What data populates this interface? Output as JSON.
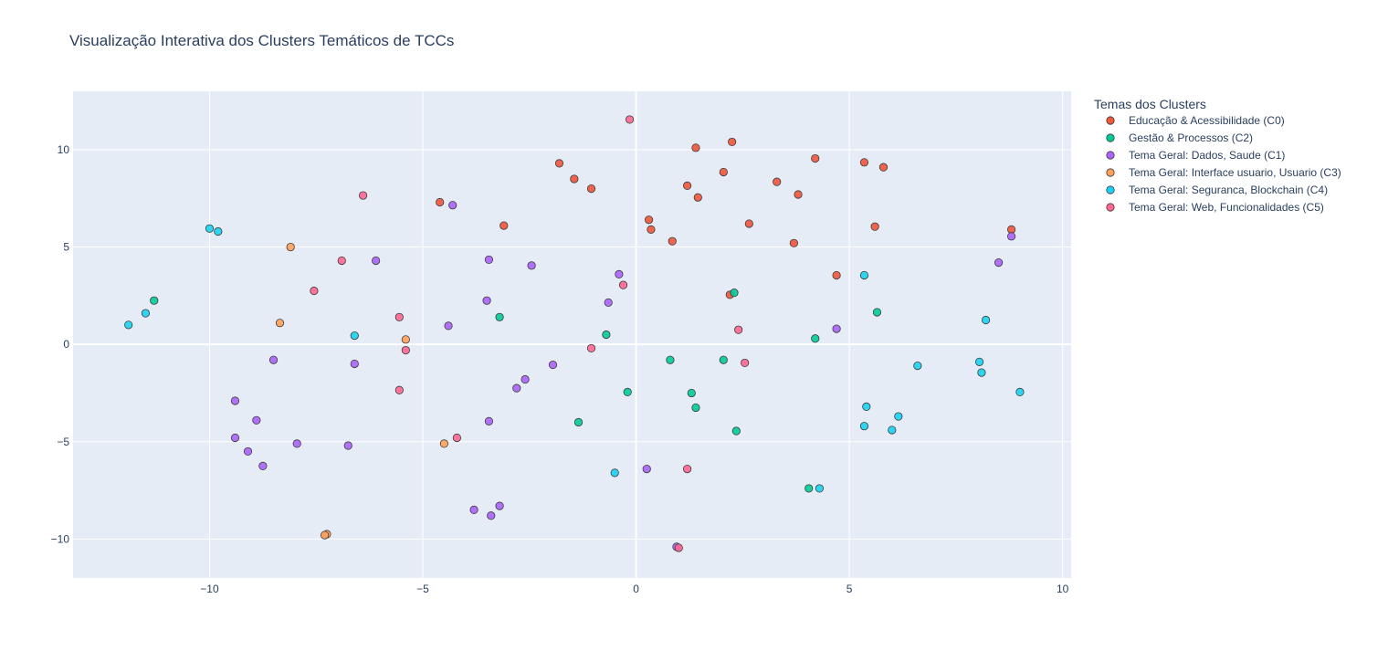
{
  "chart_data": {
    "type": "scatter",
    "title": "Visualização Interativa dos Clusters Temáticos de TCCs",
    "xlabel": "",
    "ylabel": "",
    "xlim": [
      -13.2,
      10.2
    ],
    "ylim": [
      -12.0,
      13.0
    ],
    "x_ticks": [
      -10,
      -5,
      0,
      5,
      10
    ],
    "y_ticks": [
      -10,
      -5,
      0,
      5,
      10
    ],
    "x_tick_labels": [
      "−10",
      "−5",
      "0",
      "5",
      "10"
    ],
    "y_tick_labels": [
      "−10",
      "−5",
      "0",
      "5",
      "10"
    ],
    "grid": true,
    "legend_position": "right",
    "legend_title": "Temas dos Clusters",
    "series": [
      {
        "name": "Educação & Acessibilidade (C0)",
        "color": "#EF553B",
        "points": [
          [
            -4.6,
            7.3
          ],
          [
            -3.1,
            6.1
          ],
          [
            -1.8,
            9.3
          ],
          [
            -1.45,
            8.5
          ],
          [
            -1.05,
            8.0
          ],
          [
            0.3,
            6.4
          ],
          [
            0.35,
            5.9
          ],
          [
            0.85,
            5.3
          ],
          [
            1.2,
            8.15
          ],
          [
            1.4,
            10.1
          ],
          [
            1.45,
            7.55
          ],
          [
            2.05,
            8.85
          ],
          [
            2.25,
            10.4
          ],
          [
            2.2,
            2.55
          ],
          [
            2.65,
            6.2
          ],
          [
            3.3,
            8.35
          ],
          [
            3.7,
            5.2
          ],
          [
            3.8,
            7.7
          ],
          [
            4.2,
            9.55
          ],
          [
            4.7,
            3.55
          ],
          [
            5.35,
            9.35
          ],
          [
            5.6,
            6.05
          ],
          [
            5.8,
            9.1
          ],
          [
            8.8,
            5.9
          ]
        ]
      },
      {
        "name": "Gestão & Processos (C2)",
        "color": "#00CC96",
        "points": [
          [
            -11.3,
            2.25
          ],
          [
            -3.2,
            1.4
          ],
          [
            -0.7,
            0.5
          ],
          [
            -0.2,
            -2.45
          ],
          [
            -1.35,
            -4.0
          ],
          [
            0.8,
            -0.8
          ],
          [
            1.3,
            -2.5
          ],
          [
            1.4,
            -3.25
          ],
          [
            2.05,
            -0.8
          ],
          [
            2.3,
            2.65
          ],
          [
            2.35,
            -4.45
          ],
          [
            4.05,
            -7.4
          ],
          [
            4.2,
            0.3
          ],
          [
            5.65,
            1.65
          ]
        ]
      },
      {
        "name": "Tema Geral: Dados, Saude (C1)",
        "color": "#AB63FA",
        "points": [
          [
            -9.4,
            -2.9
          ],
          [
            -9.4,
            -4.8
          ],
          [
            -9.1,
            -5.5
          ],
          [
            -8.9,
            -3.9
          ],
          [
            -8.75,
            -6.25
          ],
          [
            -8.5,
            -0.8
          ],
          [
            -7.95,
            -5.1
          ],
          [
            -6.75,
            -5.2
          ],
          [
            -6.6,
            -1.0
          ],
          [
            -6.1,
            4.3
          ],
          [
            -4.4,
            0.95
          ],
          [
            -4.3,
            7.15
          ],
          [
            -3.5,
            2.25
          ],
          [
            -3.45,
            4.35
          ],
          [
            -3.45,
            -3.95
          ],
          [
            -3.4,
            -8.8
          ],
          [
            -3.8,
            -8.5
          ],
          [
            -3.2,
            -8.3
          ],
          [
            -2.8,
            -2.25
          ],
          [
            -2.6,
            -1.8
          ],
          [
            -2.45,
            4.05
          ],
          [
            -1.95,
            -1.05
          ],
          [
            -0.65,
            2.15
          ],
          [
            -0.4,
            3.6
          ],
          [
            0.25,
            -6.4
          ],
          [
            0.95,
            -10.4
          ],
          [
            4.7,
            0.8
          ],
          [
            8.5,
            4.2
          ],
          [
            8.8,
            5.55
          ]
        ]
      },
      {
        "name": "Tema Geral: Interface usuario, Usuario (C3)",
        "color": "#FFA15A",
        "points": [
          [
            -8.1,
            5.0
          ],
          [
            -8.35,
            1.1
          ],
          [
            -7.25,
            -9.75
          ],
          [
            -7.3,
            -9.8
          ],
          [
            -5.4,
            0.25
          ],
          [
            -4.5,
            -5.1
          ]
        ]
      },
      {
        "name": "Tema Geral: Seguranca, Blockchain (C4)",
        "color": "#19D3F3",
        "points": [
          [
            -11.9,
            1.0
          ],
          [
            -11.5,
            1.6
          ],
          [
            -10.0,
            5.95
          ],
          [
            -9.8,
            5.8
          ],
          [
            -6.6,
            0.45
          ],
          [
            -0.5,
            -6.6
          ],
          [
            4.3,
            -7.4
          ],
          [
            5.35,
            3.55
          ],
          [
            5.35,
            -4.2
          ],
          [
            5.4,
            -3.2
          ],
          [
            6.0,
            -4.4
          ],
          [
            6.15,
            -3.7
          ],
          [
            6.6,
            -1.1
          ],
          [
            8.05,
            -0.9
          ],
          [
            8.1,
            -1.45
          ],
          [
            8.2,
            1.25
          ],
          [
            9.0,
            -2.45
          ]
        ]
      },
      {
        "name": "Tema Geral: Web, Funcionalidades (C5)",
        "color": "#FF6692",
        "points": [
          [
            -7.55,
            2.75
          ],
          [
            -6.9,
            4.3
          ],
          [
            -6.4,
            7.65
          ],
          [
            -5.55,
            1.4
          ],
          [
            -5.4,
            -0.3
          ],
          [
            -5.55,
            -2.35
          ],
          [
            -4.2,
            -4.8
          ],
          [
            -1.05,
            -0.2
          ],
          [
            -0.3,
            3.05
          ],
          [
            -0.15,
            11.55
          ],
          [
            1.0,
            -10.45
          ],
          [
            1.2,
            -6.4
          ],
          [
            2.4,
            0.75
          ],
          [
            2.55,
            -0.95
          ]
        ]
      }
    ]
  }
}
